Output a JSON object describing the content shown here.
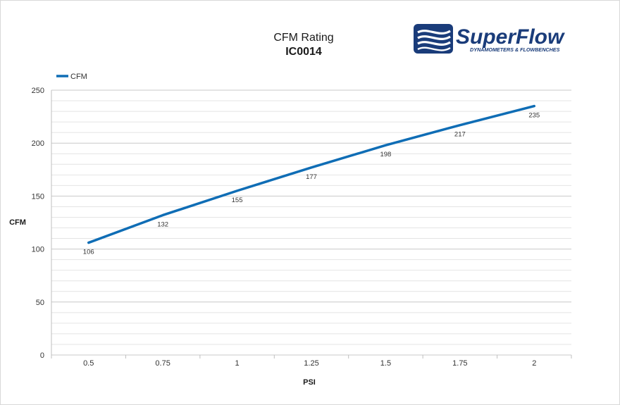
{
  "chart_data": {
    "type": "line",
    "title": "CFM Rating",
    "subtitle": "IC0014",
    "xlabel": "PSI",
    "ylabel": "CFM",
    "categories": [
      "0.5",
      "0.75",
      "1",
      "1.25",
      "1.5",
      "1.75",
      "2"
    ],
    "series": [
      {
        "name": "CFM",
        "values": [
          106,
          132,
          155,
          177,
          198,
          217,
          235
        ],
        "color": "#0f6db5"
      }
    ],
    "ylim": [
      0,
      250
    ],
    "yticks": [
      0,
      50,
      100,
      150,
      200,
      250
    ],
    "grid": true,
    "minor_grid": true,
    "legend": "top-left",
    "data_labels": true
  },
  "logo": {
    "brand": "SuperFlow",
    "tagline": "DYNAMOMETERS & FLOWBENCHES",
    "icon": "superflow-wave-logo",
    "color": "#1a3c7a"
  }
}
